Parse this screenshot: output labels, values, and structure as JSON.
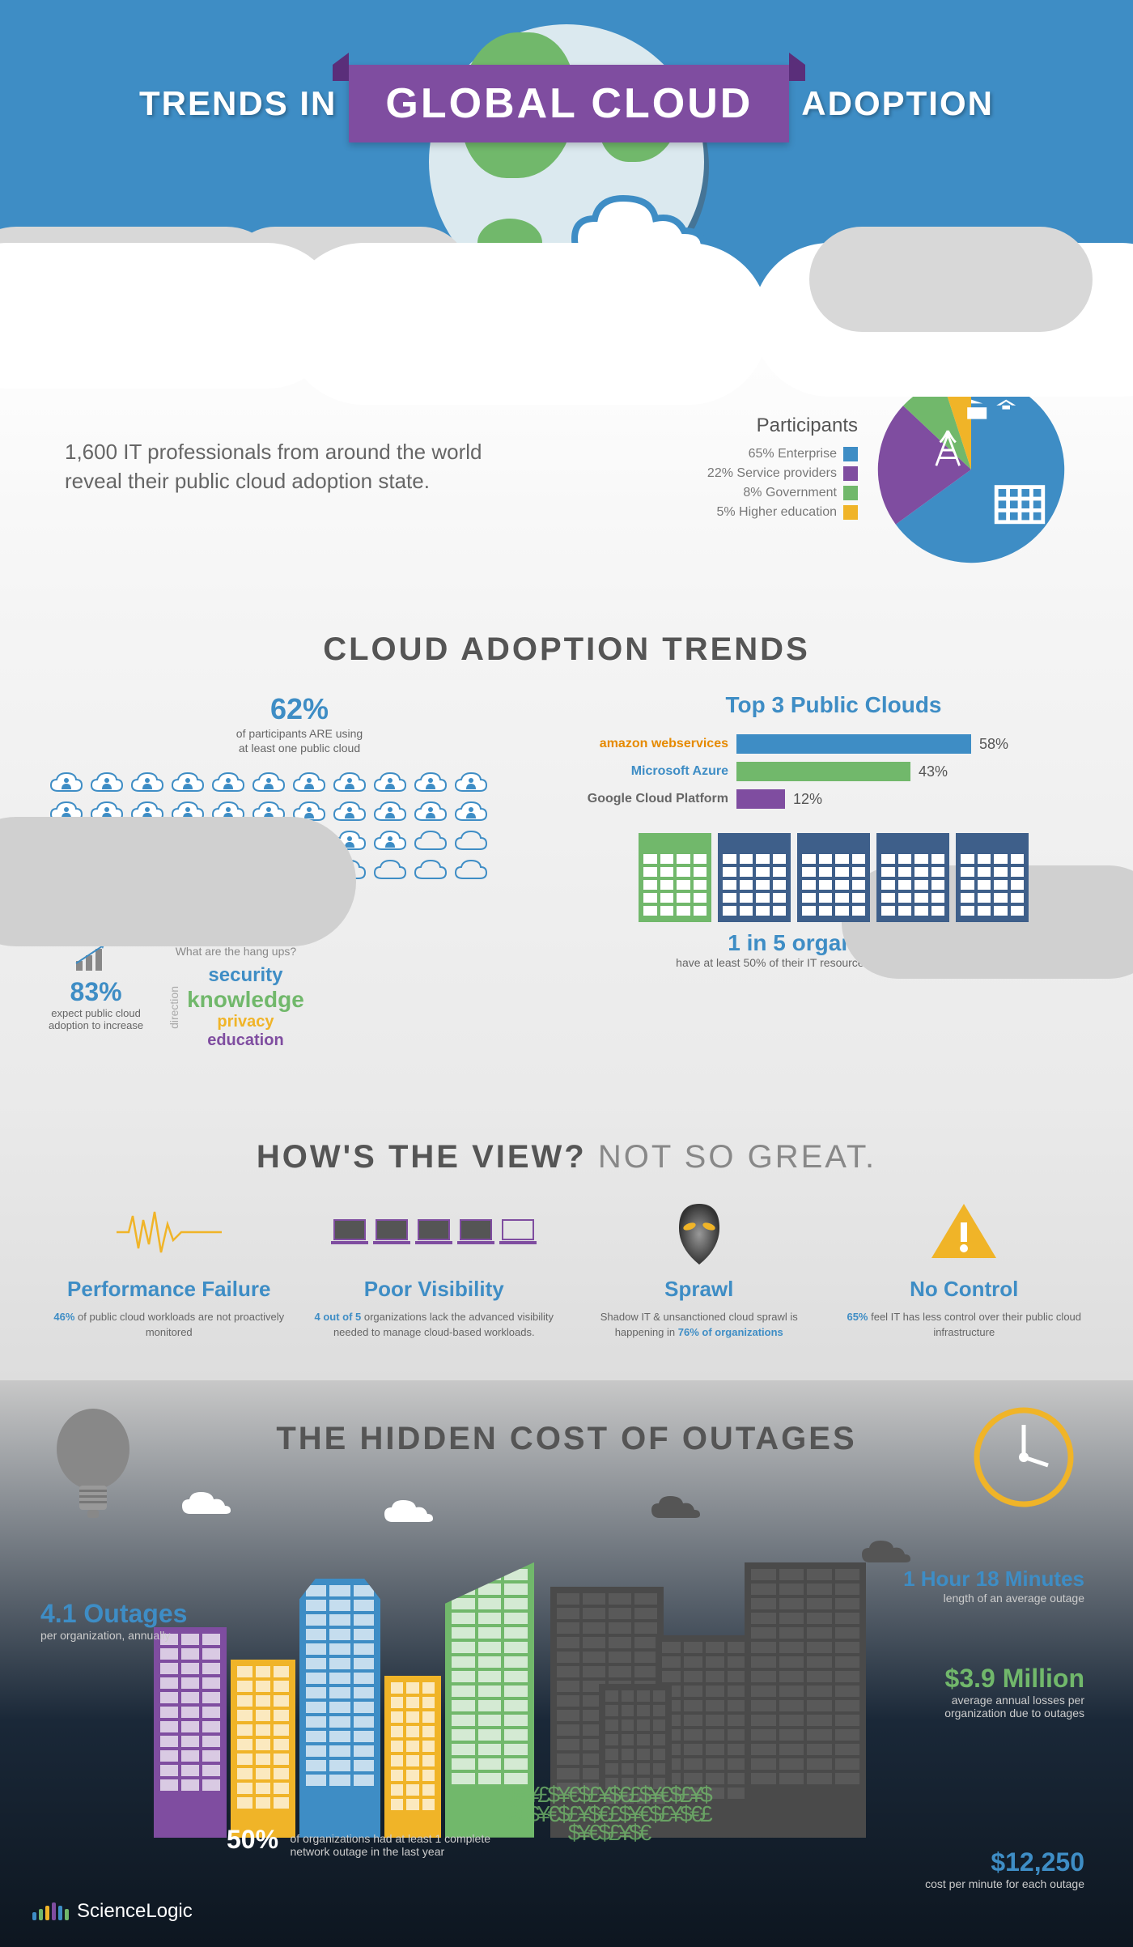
{
  "header": {
    "title_left": "TRENDS IN",
    "title_center": "GLOBAL CLOUD",
    "title_right": "ADOPTION",
    "banner_bg": "#7f4da0",
    "sky_bg": "#3e8dc5"
  },
  "intro": {
    "text": "1,600 IT professionals from around the world reveal their public cloud adoption state.",
    "participants_title": "Participants",
    "participants": [
      {
        "pct": "65%",
        "label": "Enterprise",
        "color": "#3e8dc5"
      },
      {
        "pct": "22%",
        "label": "Service providers",
        "color": "#7f4da0"
      },
      {
        "pct": "8%",
        "label": "Government",
        "color": "#71b86b"
      },
      {
        "pct": "5%",
        "label": "Higher education",
        "color": "#f0b428"
      }
    ]
  },
  "trends": {
    "title": "CLOUD ADOPTION TRENDS",
    "stat62_pct": "62%",
    "stat62_line1": "of participants ARE using",
    "stat62_line2": "at least one public cloud",
    "hangups_q": "What are the hang ups?",
    "hangups_direction": "direction",
    "hangups": [
      {
        "word": "security",
        "color": "#3e8dc5",
        "size": 24
      },
      {
        "word": "knowledge",
        "color": "#71b86b",
        "size": 28
      },
      {
        "word": "privacy",
        "color": "#f0b428",
        "size": 20
      },
      {
        "word": "education",
        "color": "#7f4da0",
        "size": 20
      }
    ],
    "stat83_pct": "83%",
    "stat83_line1": "expect public cloud",
    "stat83_line2": "adoption to increase",
    "top3_title": "Top 3 Public Clouds",
    "top3": [
      {
        "name": "amazon webservices",
        "pct": 58,
        "label": "58%",
        "color": "#3e8dc5",
        "name_color": "#e68a00"
      },
      {
        "name": "Microsoft Azure",
        "pct": 43,
        "label": "43%",
        "color": "#71b86b",
        "name_color": "#3e8dc5"
      },
      {
        "name": "Google Cloud Platform",
        "pct": 12,
        "label": "12%",
        "color": "#7f4da0",
        "name_color": "#666"
      }
    ],
    "orgs_main": "1 in 5 organizations",
    "orgs_sub_a": "have at least 50% of their IT resources hosted in a public cloud",
    "building_colors": [
      "#71b86b",
      "#3e5f8a",
      "#3e5f8a",
      "#3e5f8a",
      "#3e5f8a"
    ]
  },
  "view": {
    "title_a": "HOW'S THE VIEW?",
    "title_b": "NOT SO GREAT.",
    "cards": [
      {
        "title": "Performance Failure",
        "text_a": "46%",
        "text_b": " of public cloud workloads are not proactively monitored",
        "icon": "pulse",
        "accent": "#f0b428"
      },
      {
        "title": "Poor Visibility",
        "text_a": "4 out of 5",
        "text_b": " organizations lack the advanced visibility needed to manage cloud-based workloads.",
        "icon": "laptops",
        "accent": "#7f4da0"
      },
      {
        "title": "Sprawl",
        "text_a": "76% of organizations",
        "text_b_pre": "Shadow IT & unsanctioned cloud sprawl is happening in ",
        "icon": "alien",
        "accent": "#666"
      },
      {
        "title": "No Control",
        "text_a": "65%",
        "text_b": " feel IT has less control over their public cloud infrastructure",
        "icon": "warn",
        "accent": "#f0b428"
      }
    ]
  },
  "cost": {
    "title": "THE HIDDEN COST OF OUTAGES",
    "outages_big": "4.1 Outages",
    "outages_sub": "per organization, annually",
    "fifty_pct": "50%",
    "fifty_text": "of organizations had at least 1 complete network outage in the last year",
    "duration_big": "1 Hour 18 Minutes",
    "duration_sub": "length of an average outage",
    "loss_big": "$3.9 Million",
    "loss_sub": "average annual losses per organization due to outages",
    "per_min_big": "$12,250",
    "per_min_sub": "cost per minute for each outage",
    "city_colors": [
      "#7f4da0",
      "#f0b428",
      "#3e8dc5",
      "#f0b428",
      "#71b86b"
    ],
    "dark_color": "#4a4a4a",
    "money_symbols": "$€¥£$¥€$£¥$€£$¥€$£¥$€£$¥€$£¥$€£$¥€$£¥$€£$¥€$£¥$€"
  },
  "logo": {
    "text": "ScienceLogic",
    "dot_colors": [
      "#3e8dc5",
      "#71b86b",
      "#f0b428",
      "#7f4da0",
      "#3e8dc5",
      "#71b86b"
    ],
    "dot_heights": [
      10,
      14,
      18,
      22,
      18,
      14
    ]
  },
  "colors": {
    "blue": "#3e8dc5",
    "purple": "#7f4da0",
    "green": "#71b86b",
    "yellow": "#f0b428",
    "gray": "#666"
  }
}
